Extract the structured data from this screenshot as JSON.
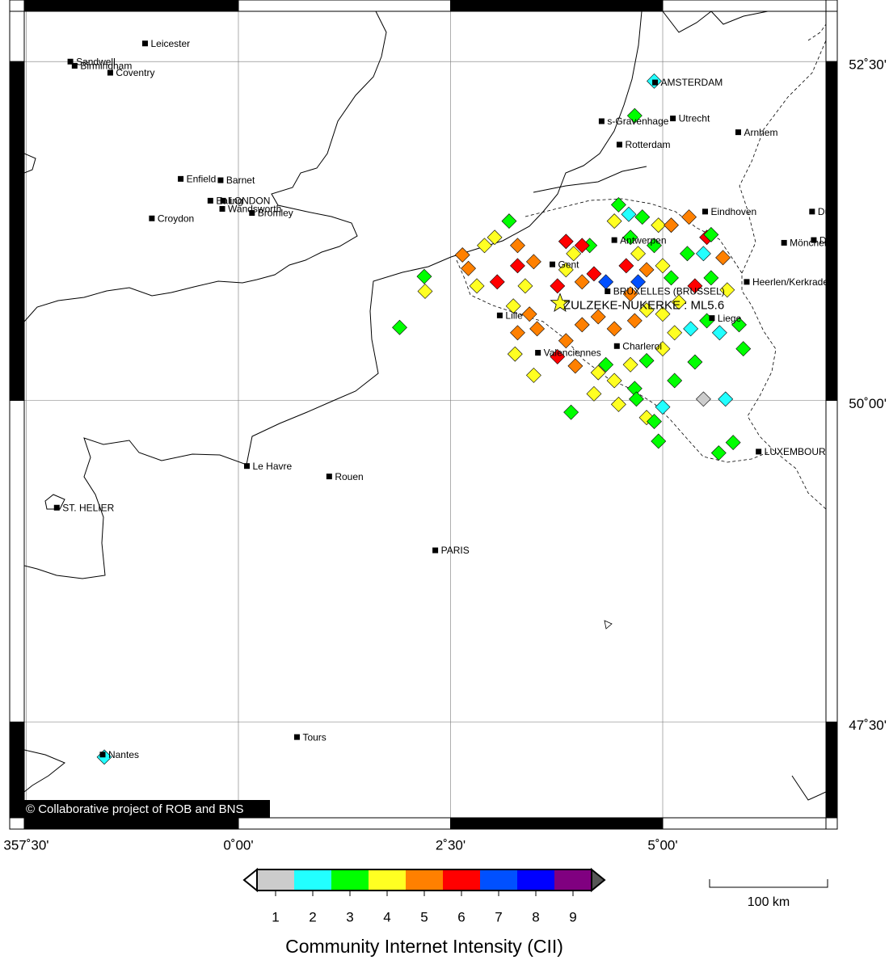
{
  "map": {
    "lon_range": [
      -2.695,
      7.057
    ],
    "lat_range": [
      46.64,
      52.94
    ],
    "lon_ticks": [
      {
        "value": -2.5,
        "label": "357˚30'"
      },
      {
        "value": 0,
        "label": "0˚00'"
      },
      {
        "value": 2.5,
        "label": "2˚30'"
      },
      {
        "value": 5,
        "label": "5˚00'"
      }
    ],
    "lat_ticks": [
      {
        "value": 52.5,
        "label": "52˚30'"
      },
      {
        "value": 50,
        "label": "50˚00'"
      },
      {
        "value": 47.5,
        "label": "47˚30'"
      }
    ],
    "cities": [
      {
        "name": "Leicester",
        "lon": -1.1,
        "lat": 52.63
      },
      {
        "name": "Sandwell",
        "lon": -1.98,
        "lat": 52.5
      },
      {
        "name": "Birmingham",
        "lon": -1.93,
        "lat": 52.47
      },
      {
        "name": "Coventry",
        "lon": -1.51,
        "lat": 52.42
      },
      {
        "name": "AMSTERDAM",
        "lon": 4.91,
        "lat": 52.35
      },
      {
        "name": "Utrecht",
        "lon": 5.12,
        "lat": 52.09
      },
      {
        "name": "s-Gravenhage",
        "lon": 4.28,
        "lat": 52.07
      },
      {
        "name": "Rotterdam",
        "lon": 4.49,
        "lat": 51.9
      },
      {
        "name": "Arnhem",
        "lon": 5.89,
        "lat": 51.99
      },
      {
        "name": "Enfield",
        "lon": -0.68,
        "lat": 51.65
      },
      {
        "name": "Barnet",
        "lon": -0.21,
        "lat": 51.64
      },
      {
        "name": "Ealing",
        "lon": -0.33,
        "lat": 51.49
      },
      {
        "name": "LONDON",
        "lon": -0.18,
        "lat": 51.49
      },
      {
        "name": "Wandsworth",
        "lon": -0.19,
        "lat": 51.43
      },
      {
        "name": "Bromley",
        "lon": 0.16,
        "lat": 51.4
      },
      {
        "name": "Croydon",
        "lon": -1.02,
        "lat": 51.36
      },
      {
        "name": "Eindhoven",
        "lon": 5.5,
        "lat": 51.41
      },
      {
        "name": "Du",
        "lon": 6.76,
        "lat": 51.41
      },
      {
        "name": "Mönchen",
        "lon": 6.43,
        "lat": 51.18
      },
      {
        "name": "D",
        "lon": 6.78,
        "lat": 51.2
      },
      {
        "name": "Antwerpen",
        "lon": 4.43,
        "lat": 51.2
      },
      {
        "name": "Gent",
        "lon": 3.7,
        "lat": 51.02
      },
      {
        "name": "BRUXELLES (BRUSSEL)",
        "lon": 4.35,
        "lat": 50.82
      },
      {
        "name": "Heerlen/Kerkrade",
        "lon": 5.99,
        "lat": 50.89
      },
      {
        "name": "Lille",
        "lon": 3.08,
        "lat": 50.64
      },
      {
        "name": "Liege",
        "lon": 5.58,
        "lat": 50.62
      },
      {
        "name": "Valenciennes",
        "lon": 3.53,
        "lat": 50.36
      },
      {
        "name": "Charleroi",
        "lon": 4.46,
        "lat": 50.41
      },
      {
        "name": "LUXEMBOUR",
        "lon": 6.13,
        "lat": 49.61
      },
      {
        "name": "Le Havre",
        "lon": 0.1,
        "lat": 49.5
      },
      {
        "name": "Rouen",
        "lon": 1.07,
        "lat": 49.42
      },
      {
        "name": "ST. HELIER",
        "lon": -2.14,
        "lat": 49.18
      },
      {
        "name": "PARIS",
        "lon": 2.32,
        "lat": 48.85
      },
      {
        "name": "Tours",
        "lon": 0.69,
        "lat": 47.38
      },
      {
        "name": "Nantes",
        "lon": -1.6,
        "lat": 47.24
      }
    ],
    "points": [
      [
        2.19,
        50.93,
        3
      ],
      [
        2.2,
        50.82,
        4
      ],
      [
        1.9,
        50.55,
        3
      ],
      [
        2.64,
        51.09,
        5
      ],
      [
        2.71,
        50.99,
        5
      ],
      [
        2.9,
        51.16,
        4
      ],
      [
        3.19,
        51.34,
        3
      ],
      [
        3.02,
        51.22,
        4
      ],
      [
        2.81,
        50.86,
        4
      ],
      [
        3.05,
        50.89,
        6
      ],
      [
        3.29,
        51.16,
        5
      ],
      [
        3.48,
        51.04,
        5
      ],
      [
        3.38,
        50.86,
        4
      ],
      [
        3.24,
        50.71,
        4
      ],
      [
        3.43,
        50.65,
        5
      ],
      [
        3.29,
        50.51,
        5
      ],
      [
        3.52,
        50.54,
        5
      ],
      [
        3.76,
        50.33,
        6
      ],
      [
        3.86,
        50.45,
        5
      ],
      [
        4.05,
        50.57,
        5
      ],
      [
        4.24,
        50.63,
        5
      ],
      [
        4.43,
        50.54,
        5
      ],
      [
        4.67,
        50.6,
        5
      ],
      [
        4.81,
        50.68,
        4
      ],
      [
        4.62,
        50.8,
        5
      ],
      [
        4.19,
        50.95,
        6
      ],
      [
        4.05,
        50.89,
        5
      ],
      [
        3.86,
        50.98,
        4
      ],
      [
        3.76,
        50.86,
        6
      ],
      [
        3.95,
        51.1,
        4
      ],
      [
        3.86,
        51.19,
        6
      ],
      [
        4.14,
        51.16,
        3
      ],
      [
        4.48,
        51.46,
        3
      ],
      [
        4.43,
        51.34,
        4
      ],
      [
        4.62,
        51.22,
        3
      ],
      [
        4.76,
        51.37,
        3
      ],
      [
        4.95,
        51.31,
        4
      ],
      [
        5.1,
        51.31,
        5
      ],
      [
        4.9,
        51.16,
        3
      ],
      [
        4.71,
        51.1,
        4
      ],
      [
        4.57,
        51.01,
        6
      ],
      [
        4.81,
        50.98,
        5
      ],
      [
        5.0,
        51.01,
        4
      ],
      [
        5.1,
        50.92,
        3
      ],
      [
        5.29,
        51.1,
        3
      ],
      [
        5.48,
        51.1,
        2
      ],
      [
        5.52,
        51.22,
        6
      ],
      [
        5.71,
        51.07,
        5
      ],
      [
        5.57,
        50.92,
        3
      ],
      [
        5.76,
        50.83,
        4
      ],
      [
        5.38,
        50.86,
        6
      ],
      [
        5.19,
        50.74,
        4
      ],
      [
        5.0,
        50.65,
        4
      ],
      [
        5.33,
        50.54,
        2
      ],
      [
        5.52,
        50.6,
        3
      ],
      [
        5.67,
        50.51,
        2
      ],
      [
        5.9,
        50.57,
        3
      ],
      [
        5.95,
        50.39,
        3
      ],
      [
        5.14,
        50.51,
        4
      ],
      [
        5.0,
        50.39,
        4
      ],
      [
        4.81,
        50.3,
        3
      ],
      [
        4.62,
        50.27,
        4
      ],
      [
        4.33,
        50.27,
        3
      ],
      [
        4.24,
        50.21,
        4
      ],
      [
        4.43,
        50.15,
        4
      ],
      [
        5.14,
        50.15,
        3
      ],
      [
        5.38,
        50.29,
        3
      ],
      [
        4.67,
        50.09,
        3
      ],
      [
        4.19,
        50.05,
        4
      ],
      [
        4.48,
        49.97,
        4
      ],
      [
        4.69,
        50.01,
        3
      ],
      [
        5.0,
        49.95,
        2
      ],
      [
        5.48,
        50.01,
        1
      ],
      [
        5.74,
        50.01,
        2
      ],
      [
        3.92,
        49.91,
        3
      ],
      [
        4.81,
        49.87,
        4
      ],
      [
        4.95,
        49.69,
        3
      ],
      [
        5.66,
        49.6,
        3
      ],
      [
        5.83,
        49.68,
        3
      ],
      [
        3.48,
        50.19,
        4
      ],
      [
        3.26,
        50.35,
        4
      ],
      [
        3.97,
        50.26,
        5
      ],
      [
        4.9,
        49.84,
        3
      ],
      [
        4.6,
        51.39,
        2
      ],
      [
        4.67,
        52.11,
        3
      ],
      [
        4.9,
        52.36,
        2
      ],
      [
        -1.58,
        47.22,
        2
      ],
      [
        5.31,
        51.37,
        5
      ],
      [
        5.57,
        51.24,
        3
      ],
      [
        4.05,
        51.16,
        6
      ],
      [
        3.29,
        51.01,
        6
      ],
      [
        4.33,
        50.89,
        7
      ],
      [
        4.71,
        50.89,
        7
      ]
    ],
    "epicenter": {
      "label": "ZULZEKE-NUKERKE : ML5.6",
      "lon": 3.79,
      "lat": 50.73
    },
    "copyright": "© Collaborative project of ROB and BNS"
  },
  "legend": {
    "title": "Community Internet Intensity (CII)",
    "ticks": [
      1,
      2,
      3,
      4,
      5,
      6,
      7,
      8,
      9
    ],
    "colors": [
      "#cccccc",
      "#22ffff",
      "#00ff00",
      "#ffff22",
      "#ff8000",
      "#ff0000",
      "#0050ff",
      "#0000ff",
      "#800080"
    ]
  },
  "scale_bar": "100 km"
}
